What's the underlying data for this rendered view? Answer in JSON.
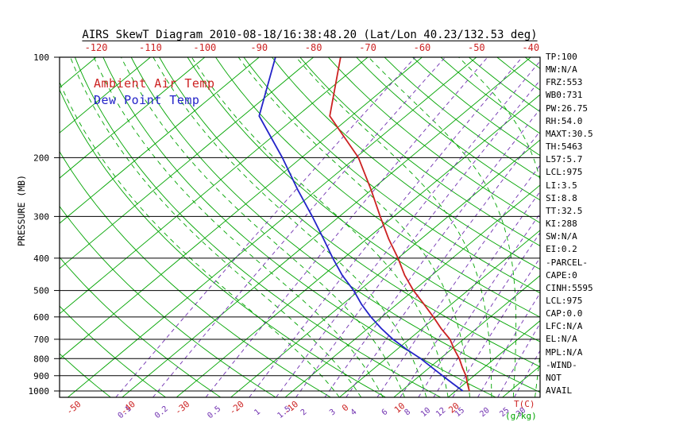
{
  "title": "AIRS SkewT Diagram 2010-08-18/16:38:48.20 (Lat/Lon 40.23/132.53 deg)",
  "legend": {
    "temp": "Ambient Air Temp",
    "dewpoint": "Dew Point Temp"
  },
  "axes": {
    "pressure_label": "PRESSURE (MB)",
    "pressure_ticks": [
      100,
      200,
      300,
      400,
      500,
      600,
      700,
      800,
      900,
      1000
    ],
    "top_temp_ticks": [
      -120,
      -110,
      -100,
      -90,
      -80,
      -70,
      -60,
      -50,
      -40
    ],
    "bottom_temp_ticks": [
      -50,
      -40,
      -30,
      -20,
      -10,
      0,
      10,
      20
    ],
    "temp_unit_label": "T(C)",
    "mixing_ratio_values": [
      0.1,
      0.2,
      0.5,
      1,
      1.5,
      2,
      3,
      4,
      6,
      8,
      10,
      12,
      15,
      20,
      25,
      30
    ],
    "mixing_unit_label": "(g/kg)"
  },
  "stats": [
    "TP:100",
    "MW:N/A",
    "FRZ:553",
    "WB0:731",
    "PW:26.75",
    "RH:54.0",
    "MAXT:30.5",
    "TH:5463",
    "L57:5.7",
    "LCL:975",
    "LI:3.5",
    "SI:8.8",
    "TT:32.5",
    "KI:288",
    "SW:N/A",
    "EI:0.2",
    "-PARCEL-",
    "CAPE:0",
    "CINH:5595",
    "LCL:975",
    "CAP:0.0",
    "LFC:N/A",
    "EL:N/A",
    "MPL:N/A",
    "-WIND-",
    "NOT",
    "AVAIL"
  ],
  "colors": {
    "background": "#ffffff",
    "axis": "#000000",
    "ambient_temp": "#cc2222",
    "dew_point": "#2323c8",
    "isotherm_green": "#00a400",
    "mixing_ratio_violet": "#7030b0",
    "label_green": "#00a400"
  },
  "chart_data": {
    "type": "line",
    "title": "AIRS SkewT Diagram 2010-08-18/16:38:48.20 (Lat/Lon 40.23/132.53 deg)",
    "xlabel": "T(C)",
    "ylabel": "PRESSURE (MB)",
    "pressure_range_mb": [
      100,
      1045
    ],
    "pressure_scale": "log",
    "skew_note": "isotherms tilt right with height (skew-T log-P projection)",
    "legend_position": "top-left inside plot",
    "series": [
      {
        "name": "Ambient Air Temp",
        "color": "#cc2222",
        "points_p_t": [
          [
            100,
            -75
          ],
          [
            150,
            -64
          ],
          [
            200,
            -49.5
          ],
          [
            250,
            -40
          ],
          [
            300,
            -32.5
          ],
          [
            350,
            -26
          ],
          [
            400,
            -20
          ],
          [
            450,
            -15
          ],
          [
            500,
            -10
          ],
          [
            550,
            -5
          ],
          [
            600,
            -0.5
          ],
          [
            650,
            3.5
          ],
          [
            700,
            7.5
          ],
          [
            750,
            10.5
          ],
          [
            800,
            13.5
          ],
          [
            850,
            16
          ],
          [
            900,
            18.5
          ],
          [
            950,
            20.5
          ],
          [
            1000,
            22.5
          ]
        ]
      },
      {
        "name": "Dew Point Temp",
        "color": "#2323c8",
        "points_p_t": [
          [
            100,
            -87
          ],
          [
            150,
            -77
          ],
          [
            200,
            -63.5
          ],
          [
            250,
            -53.5
          ],
          [
            300,
            -45
          ],
          [
            350,
            -38
          ],
          [
            400,
            -32
          ],
          [
            450,
            -26.5
          ],
          [
            500,
            -21
          ],
          [
            550,
            -16.5
          ],
          [
            600,
            -12
          ],
          [
            650,
            -7.5
          ],
          [
            700,
            -3
          ],
          [
            750,
            1.7
          ],
          [
            800,
            6.4
          ],
          [
            850,
            10.4
          ],
          [
            900,
            14.2
          ],
          [
            950,
            17.8
          ],
          [
            1000,
            21.3
          ]
        ]
      }
    ],
    "grid": {
      "pressure_lines_mb": [
        100,
        200,
        300,
        400,
        500,
        600,
        700,
        800,
        900,
        1000
      ],
      "isotherms_C": {
        "min": -160,
        "max": 40,
        "step": 10
      },
      "dry_adiabats_thetaC": {
        "min": -55,
        "max": 185,
        "step": 10
      },
      "moist_adiabats_startC": {
        "min": 0,
        "max": 40,
        "step": 4
      },
      "mixing_ratio_g_kg": [
        0.1,
        0.2,
        0.5,
        1,
        1.5,
        2,
        3,
        4,
        6,
        8,
        10,
        12,
        15,
        20,
        25,
        30
      ]
    }
  }
}
